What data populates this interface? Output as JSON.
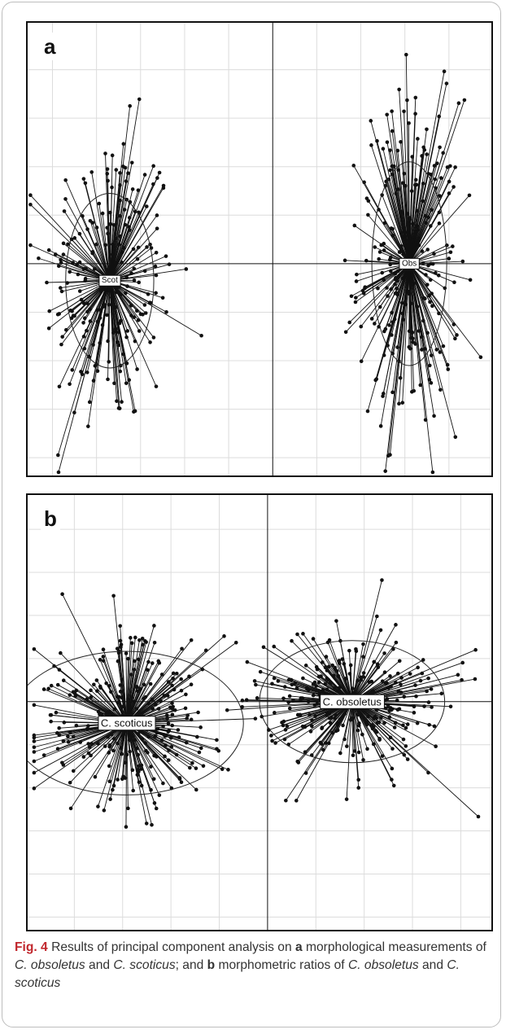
{
  "chart_data": [
    {
      "type": "scatter",
      "panel_label": "a",
      "title": "",
      "xlabel": "",
      "ylabel": "",
      "xlim": [
        -5.6,
        5.0
      ],
      "ylim": [
        -4.4,
        5.0
      ],
      "grid": true,
      "grid_step": 1,
      "show_axes_through_origin": true,
      "groups": [
        {
          "label": "Scot",
          "centroid": [
            -3.7,
            -0.35
          ],
          "n": 240,
          "spread": [
            0.75,
            1.55
          ],
          "ellipse": {
            "rx": 1.0,
            "ry": 1.8
          }
        },
        {
          "label": "Obs",
          "centroid": [
            3.1,
            0.0
          ],
          "n": 260,
          "spread": [
            0.58,
            1.7
          ],
          "ellipse": {
            "rx": 0.85,
            "ry": 2.1
          }
        }
      ]
    },
    {
      "type": "scatter",
      "panel_label": "b",
      "title": "",
      "xlabel": "",
      "ylabel": "",
      "xlim": [
        -3.0,
        2.8
      ],
      "ylim": [
        -3.2,
        2.9
      ],
      "grid": true,
      "grid_step": 0.6,
      "show_axes_through_origin": true,
      "groups": [
        {
          "label": "C. scoticus",
          "centroid": [
            -1.75,
            -0.3
          ],
          "n": 300,
          "spread": [
            0.62,
            0.58
          ],
          "ellipse": {
            "rx": 1.45,
            "ry": 1.0
          }
        },
        {
          "label": "C. obsoletus",
          "centroid": [
            1.05,
            0.0
          ],
          "n": 300,
          "spread": [
            0.58,
            0.48
          ],
          "ellipse": {
            "rx": 1.15,
            "ry": 0.85
          }
        }
      ]
    }
  ],
  "caption": {
    "fig_label": "Fig. 4",
    "t1": " Results of principal component analysis on ",
    "b1": "a",
    "t2": " morphological measurements of ",
    "i1": "C. obsoletus",
    "t3": " and ",
    "i2": "C. scoticus",
    "t4": "; and ",
    "b2": "b",
    "t5": " morphometric ratios of ",
    "i3": "C. obsoletus",
    "t6": " and ",
    "i4": "C. scoticus"
  }
}
